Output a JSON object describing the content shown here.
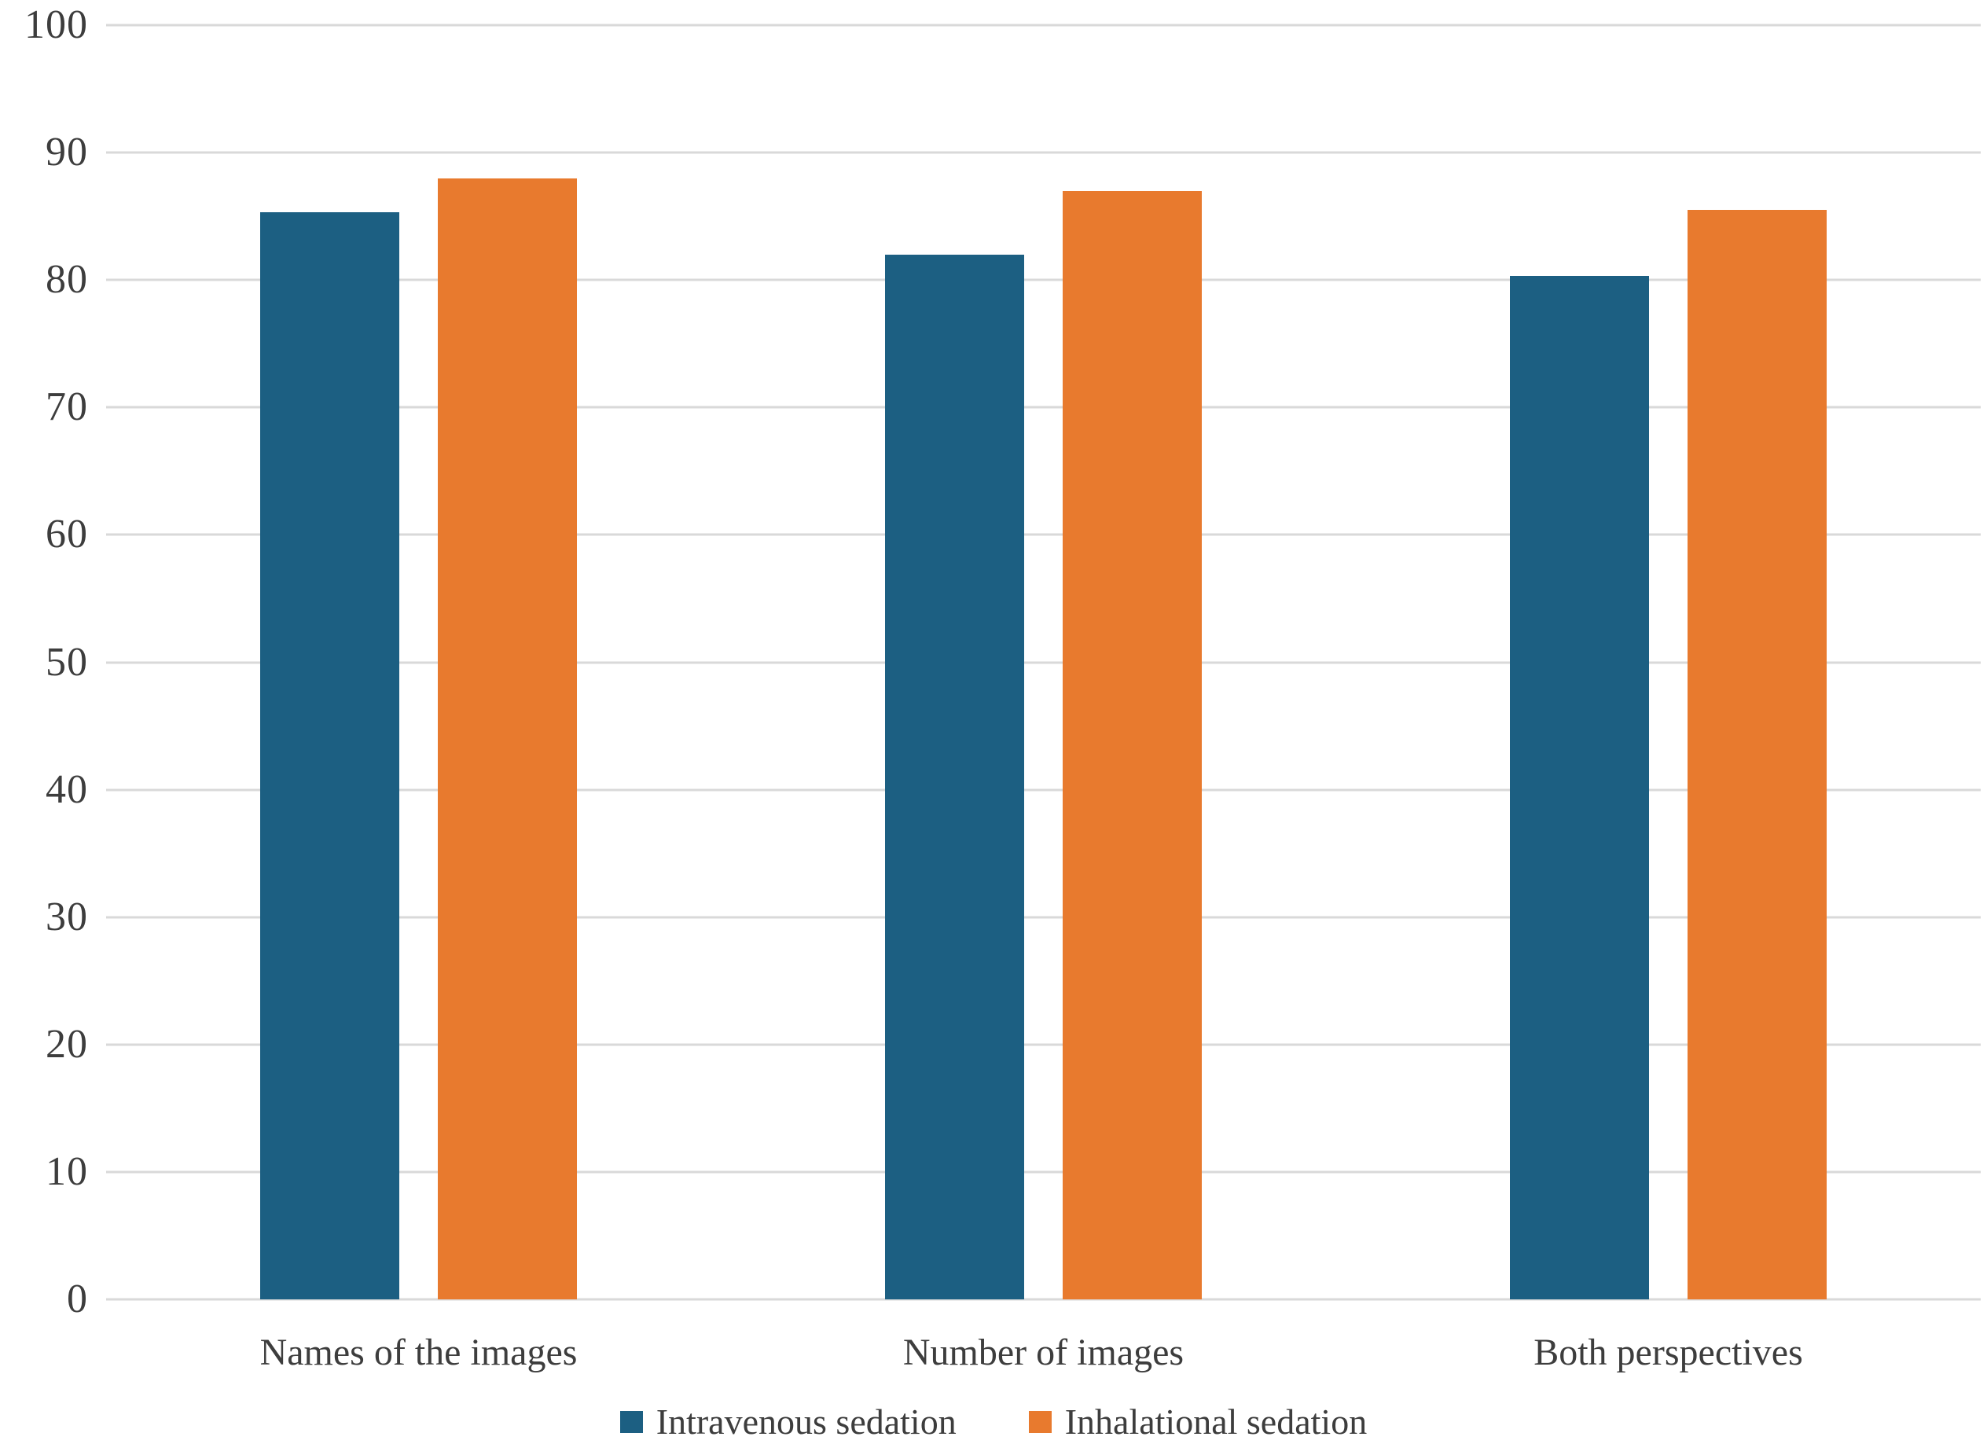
{
  "chart_data": {
    "type": "bar",
    "title": "",
    "xlabel": "",
    "ylabel": "",
    "categories": [
      "Names of the images",
      "Number of images",
      "Both perspectives"
    ],
    "series": [
      {
        "name": "Intravenous sedation",
        "color": "#1c5f82",
        "values": [
          85.3,
          82,
          80.3
        ]
      },
      {
        "name": "Inhalational sedation",
        "color": "#e87a2e",
        "values": [
          88,
          87,
          85.5
        ]
      }
    ],
    "ylim": [
      0,
      100
    ],
    "yticks": [
      0,
      10,
      20,
      30,
      40,
      50,
      60,
      70,
      80,
      90,
      100
    ],
    "grid": "horizontal",
    "gridline_color": "#d9d9d9",
    "baseline_color": "#d9d9d9",
    "text_color": "#3d3d3d",
    "background_color": "#ffffff",
    "legend_position": "bottom"
  }
}
